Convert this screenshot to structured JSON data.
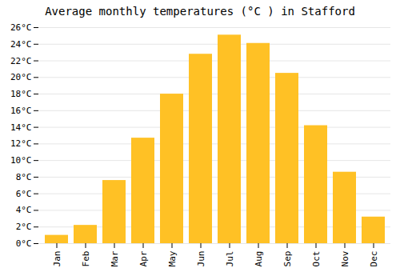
{
  "chart_data": {
    "type": "bar",
    "title": "Average monthly temperatures (°C ) in Stafford",
    "categories": [
      "Jan",
      "Feb",
      "Mar",
      "Apr",
      "May",
      "Jun",
      "Jul",
      "Aug",
      "Sep",
      "Oct",
      "Nov",
      "Dec"
    ],
    "values": [
      1.0,
      2.2,
      7.6,
      12.7,
      18.0,
      22.8,
      25.1,
      24.1,
      20.5,
      14.2,
      8.6,
      3.2
    ],
    "color": "#FFC125",
    "ylim": [
      0,
      26
    ],
    "yticks": [
      {
        "value": 0,
        "label": "0°C"
      },
      {
        "value": 2,
        "label": "2°C"
      },
      {
        "value": 4,
        "label": "4°C"
      },
      {
        "value": 6,
        "label": "6°C"
      },
      {
        "value": 8,
        "label": "8°C"
      },
      {
        "value": 10,
        "label": "10°C"
      },
      {
        "value": 12,
        "label": "12°C"
      },
      {
        "value": 14,
        "label": "14°C"
      },
      {
        "value": 16,
        "label": "16°C"
      },
      {
        "value": 18,
        "label": "18°C"
      },
      {
        "value": 20,
        "label": "20°C"
      },
      {
        "value": 22,
        "label": "22°C"
      },
      {
        "value": 24,
        "label": "24°C"
      },
      {
        "value": 26,
        "label": "26°C"
      }
    ],
    "grid": true
  }
}
